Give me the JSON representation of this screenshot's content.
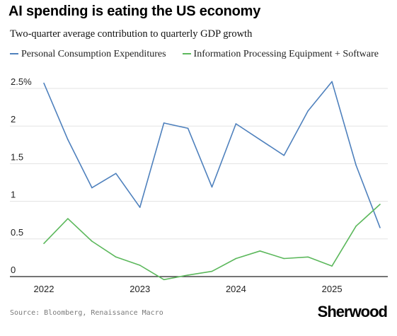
{
  "title": "AI spending is eating the US economy",
  "subtitle": "Two-quarter average contribution to quarterly GDP growth",
  "source": "Source: Bloomberg, Renaissance Macro",
  "brand": "Sherwood",
  "chart_data": {
    "type": "line",
    "ylim": [
      0,
      2.5
    ],
    "yticks": [
      "0",
      "0.5",
      "1",
      "1.5",
      "2",
      "2.5%"
    ],
    "xticks": [
      "2022",
      "2023",
      "2024",
      "2025"
    ],
    "xlim": [
      2022.0,
      2025.5
    ],
    "grid": true,
    "legend_position": "top",
    "series": [
      {
        "name": "Personal Consumption Expenditures",
        "color": "#4f81bd",
        "x": [
          2022.0,
          2022.25,
          2022.5,
          2022.75,
          2023.0,
          2023.25,
          2023.5,
          2023.75,
          2024.0,
          2024.25,
          2024.5,
          2024.75,
          2025.0,
          2025.25,
          2025.5
        ],
        "y": [
          2.57,
          1.82,
          1.18,
          1.37,
          0.92,
          2.04,
          1.97,
          1.19,
          2.03,
          1.82,
          1.61,
          2.2,
          2.59,
          1.48,
          0.65
        ]
      },
      {
        "name": "Information Processing Equipment + Software",
        "color": "#5cb85c",
        "x": [
          2022.0,
          2022.25,
          2022.5,
          2022.75,
          2023.0,
          2023.25,
          2023.5,
          2023.75,
          2024.0,
          2024.25,
          2024.5,
          2024.75,
          2025.0,
          2025.25,
          2025.5
        ],
        "y": [
          0.44,
          0.77,
          0.47,
          0.26,
          0.15,
          -0.04,
          0.02,
          0.07,
          0.24,
          0.34,
          0.24,
          0.26,
          0.14,
          0.67,
          0.96
        ]
      }
    ]
  }
}
